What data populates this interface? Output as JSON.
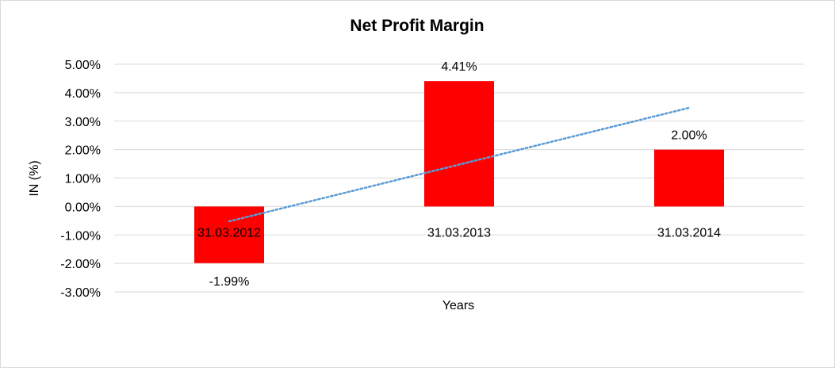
{
  "chart_data": {
    "type": "bar",
    "title": "Net Profit Margin",
    "title_color": "#ff0000",
    "xlabel": "Years",
    "ylabel": "IN (%)",
    "categories": [
      "31.03.2012",
      "31.03.2013",
      "31.03.2014"
    ],
    "series": [
      {
        "values": [
          -1.99,
          4.41,
          2.0
        ],
        "labels": [
          "-1.99%",
          "4.41%",
          "2.00%"
        ],
        "color": "#ff0000"
      }
    ],
    "trendline": {
      "type": "linear",
      "style": "dotted",
      "color": "#5b9bd5"
    },
    "ylim": [
      -3,
      5
    ],
    "yticks": [
      5,
      4,
      3,
      2,
      1,
      0,
      -1,
      -2,
      -3
    ],
    "ytick_labels": [
      "5.00%",
      "4.00%",
      "3.00%",
      "2.00%",
      "1.00%",
      "0.00%",
      "-1.00%",
      "-2.00%",
      "-3.00%"
    ],
    "grid": true,
    "legend": "none"
  }
}
